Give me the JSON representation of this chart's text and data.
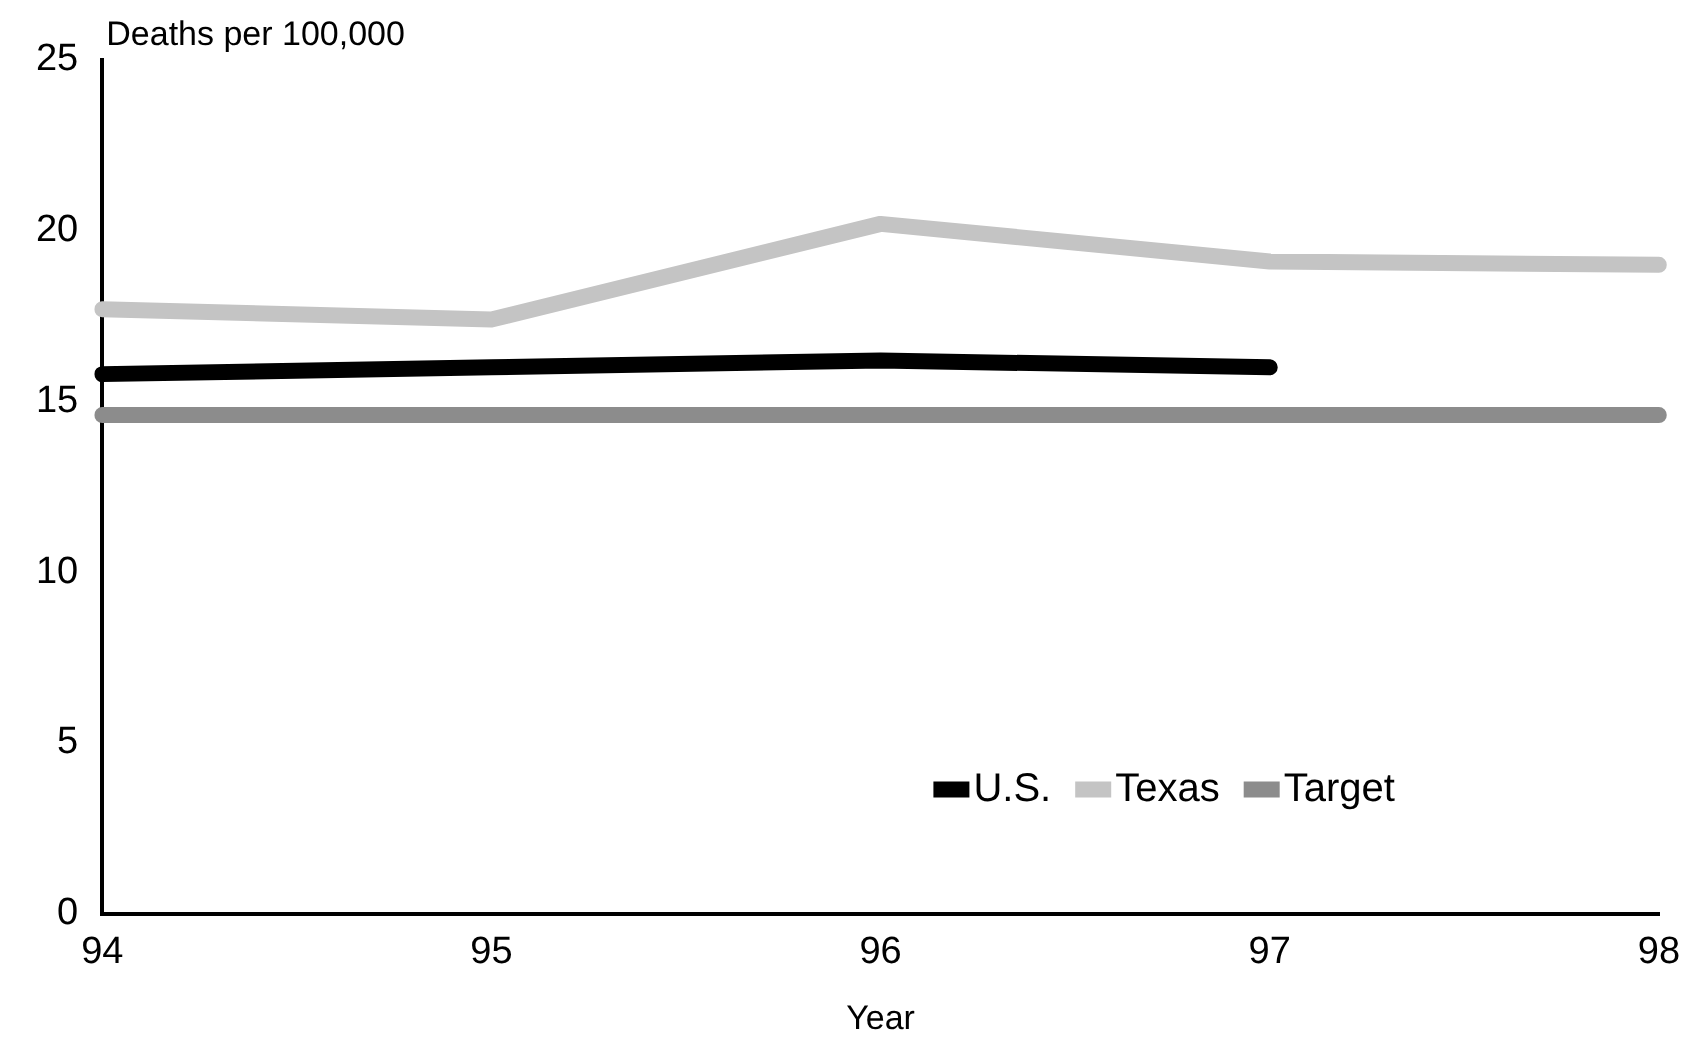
{
  "chart_data": {
    "type": "line",
    "xlabel": "Year",
    "ylabel": "Deaths per 100,000",
    "categories": [
      "94",
      "95",
      "96",
      "97",
      "98"
    ],
    "series": [
      {
        "name": "U.S.",
        "color": "#000000",
        "values": [
          15.8,
          16.0,
          16.2,
          16.0,
          null
        ]
      },
      {
        "name": "Texas",
        "color": "#c4c4c4",
        "values": [
          17.7,
          17.4,
          20.2,
          19.1,
          19.0
        ]
      },
      {
        "name": "Target",
        "color": "#8c8c8c",
        "values": [
          14.6,
          14.6,
          14.6,
          14.6,
          14.6
        ]
      }
    ],
    "ylim": [
      0,
      25
    ],
    "yticks": [
      0,
      5,
      10,
      15,
      20,
      25
    ],
    "grid": false,
    "legend": "bottom right",
    "marker": "none",
    "line_style": "solid"
  }
}
